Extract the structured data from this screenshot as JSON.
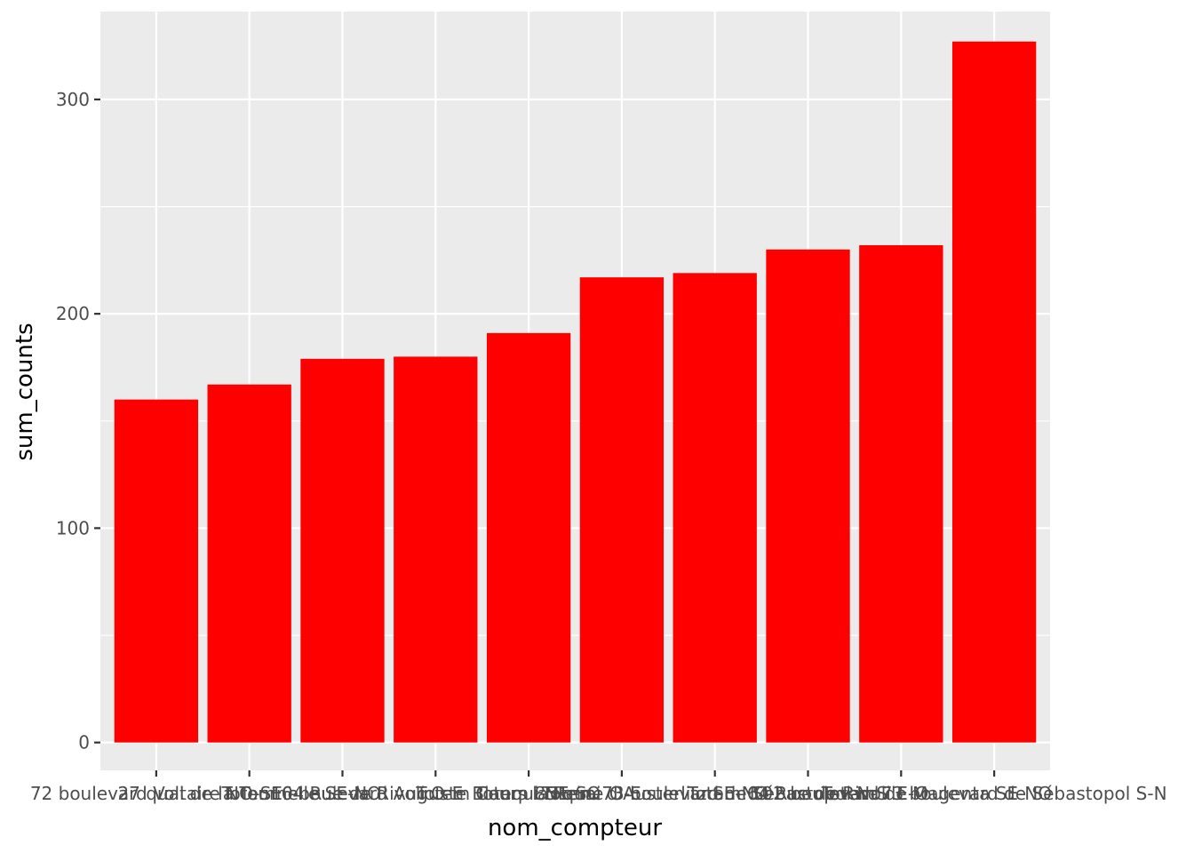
{
  "chart_data": {
    "type": "bar",
    "xlabel": "nom_compteur",
    "ylabel": "sum_counts",
    "categories": [
      "72 boulevard Voltaire NO-SE",
      "27 quai de la Tournelle SE-NO",
      "Totem 64 Rue de Rivoli O-E",
      "10 boulevard Auguste Blanqui NE-SO",
      "Totem Cours la Reine O-E",
      "Totem 85 quai d'Austerlitz SE-NO",
      "Totem 73 boulevard de Sébastopol N-S",
      "Totem 64 Rue de Rivoli E-O",
      "102 boulevard de Magenta SE-NO",
      "Totem 73 boulevard de Sébastopol S-N"
    ],
    "values": [
      160,
      167,
      179,
      180,
      191,
      217,
      219,
      230,
      232,
      327
    ],
    "ylim": [
      -13,
      341
    ],
    "yticks": [
      0,
      100,
      200,
      300
    ],
    "bar_color": "#ff0000",
    "panel_background": "#ebebeb",
    "grid_color": "#ffffff",
    "grid": true,
    "legend": "none"
  }
}
